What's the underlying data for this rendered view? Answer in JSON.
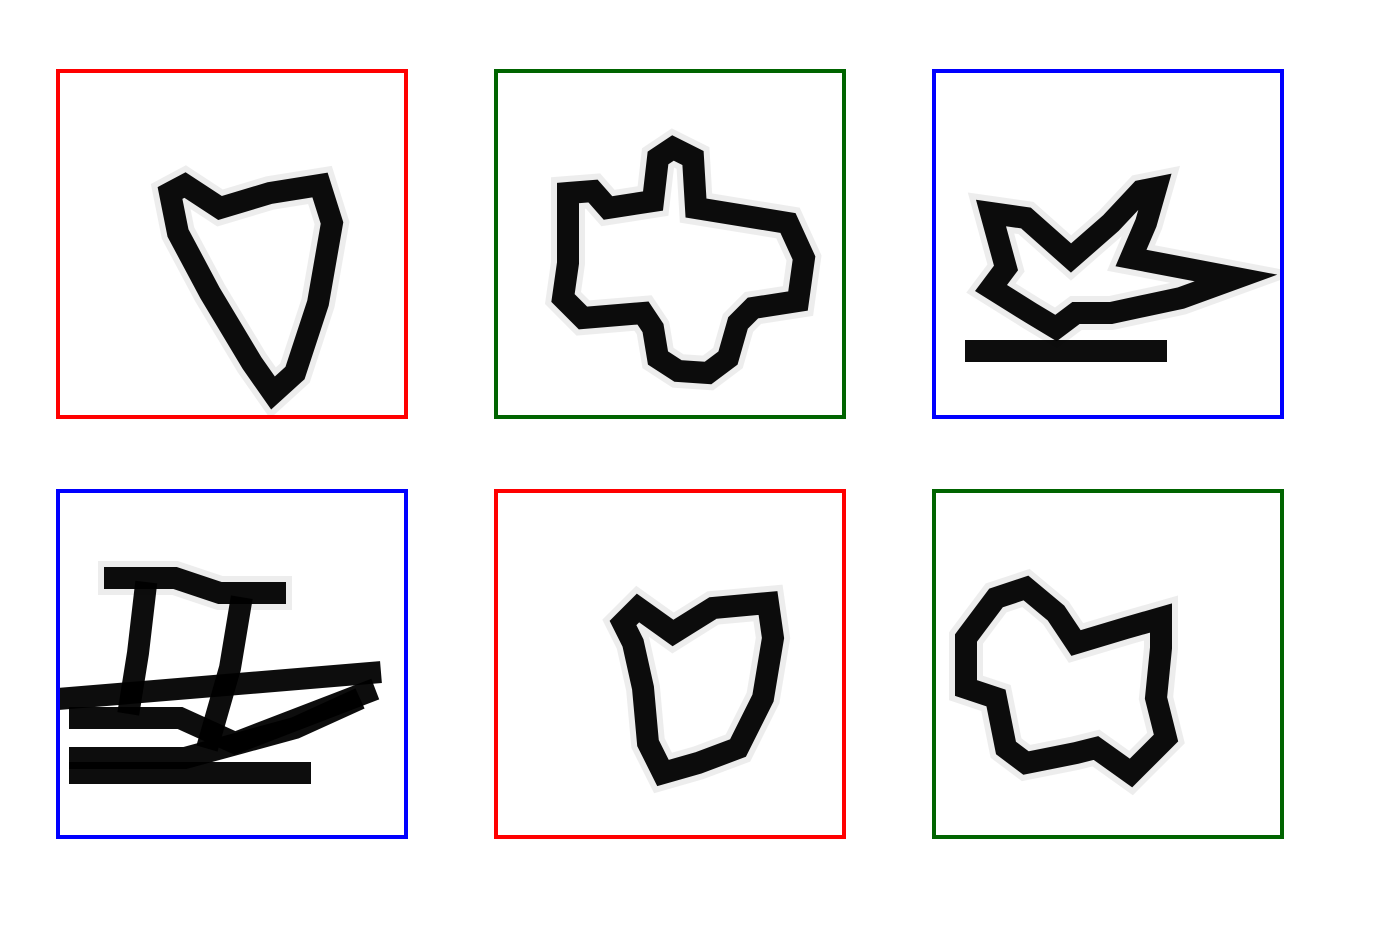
{
  "panels": [
    {
      "glyph": "heart-triangle-glyph",
      "frame_color": "#ff0000"
    },
    {
      "glyph": "blob-cross-glyph",
      "frame_color": "#006400"
    },
    {
      "glyph": "star-dash-glyph",
      "frame_color": "#0000ff"
    },
    {
      "glyph": "z-ladder-glyph",
      "frame_color": "#0000ff"
    },
    {
      "glyph": "heart-blob-glyph",
      "frame_color": "#ff0000"
    },
    {
      "glyph": "butterfly-glyph",
      "frame_color": "#006400"
    }
  ]
}
